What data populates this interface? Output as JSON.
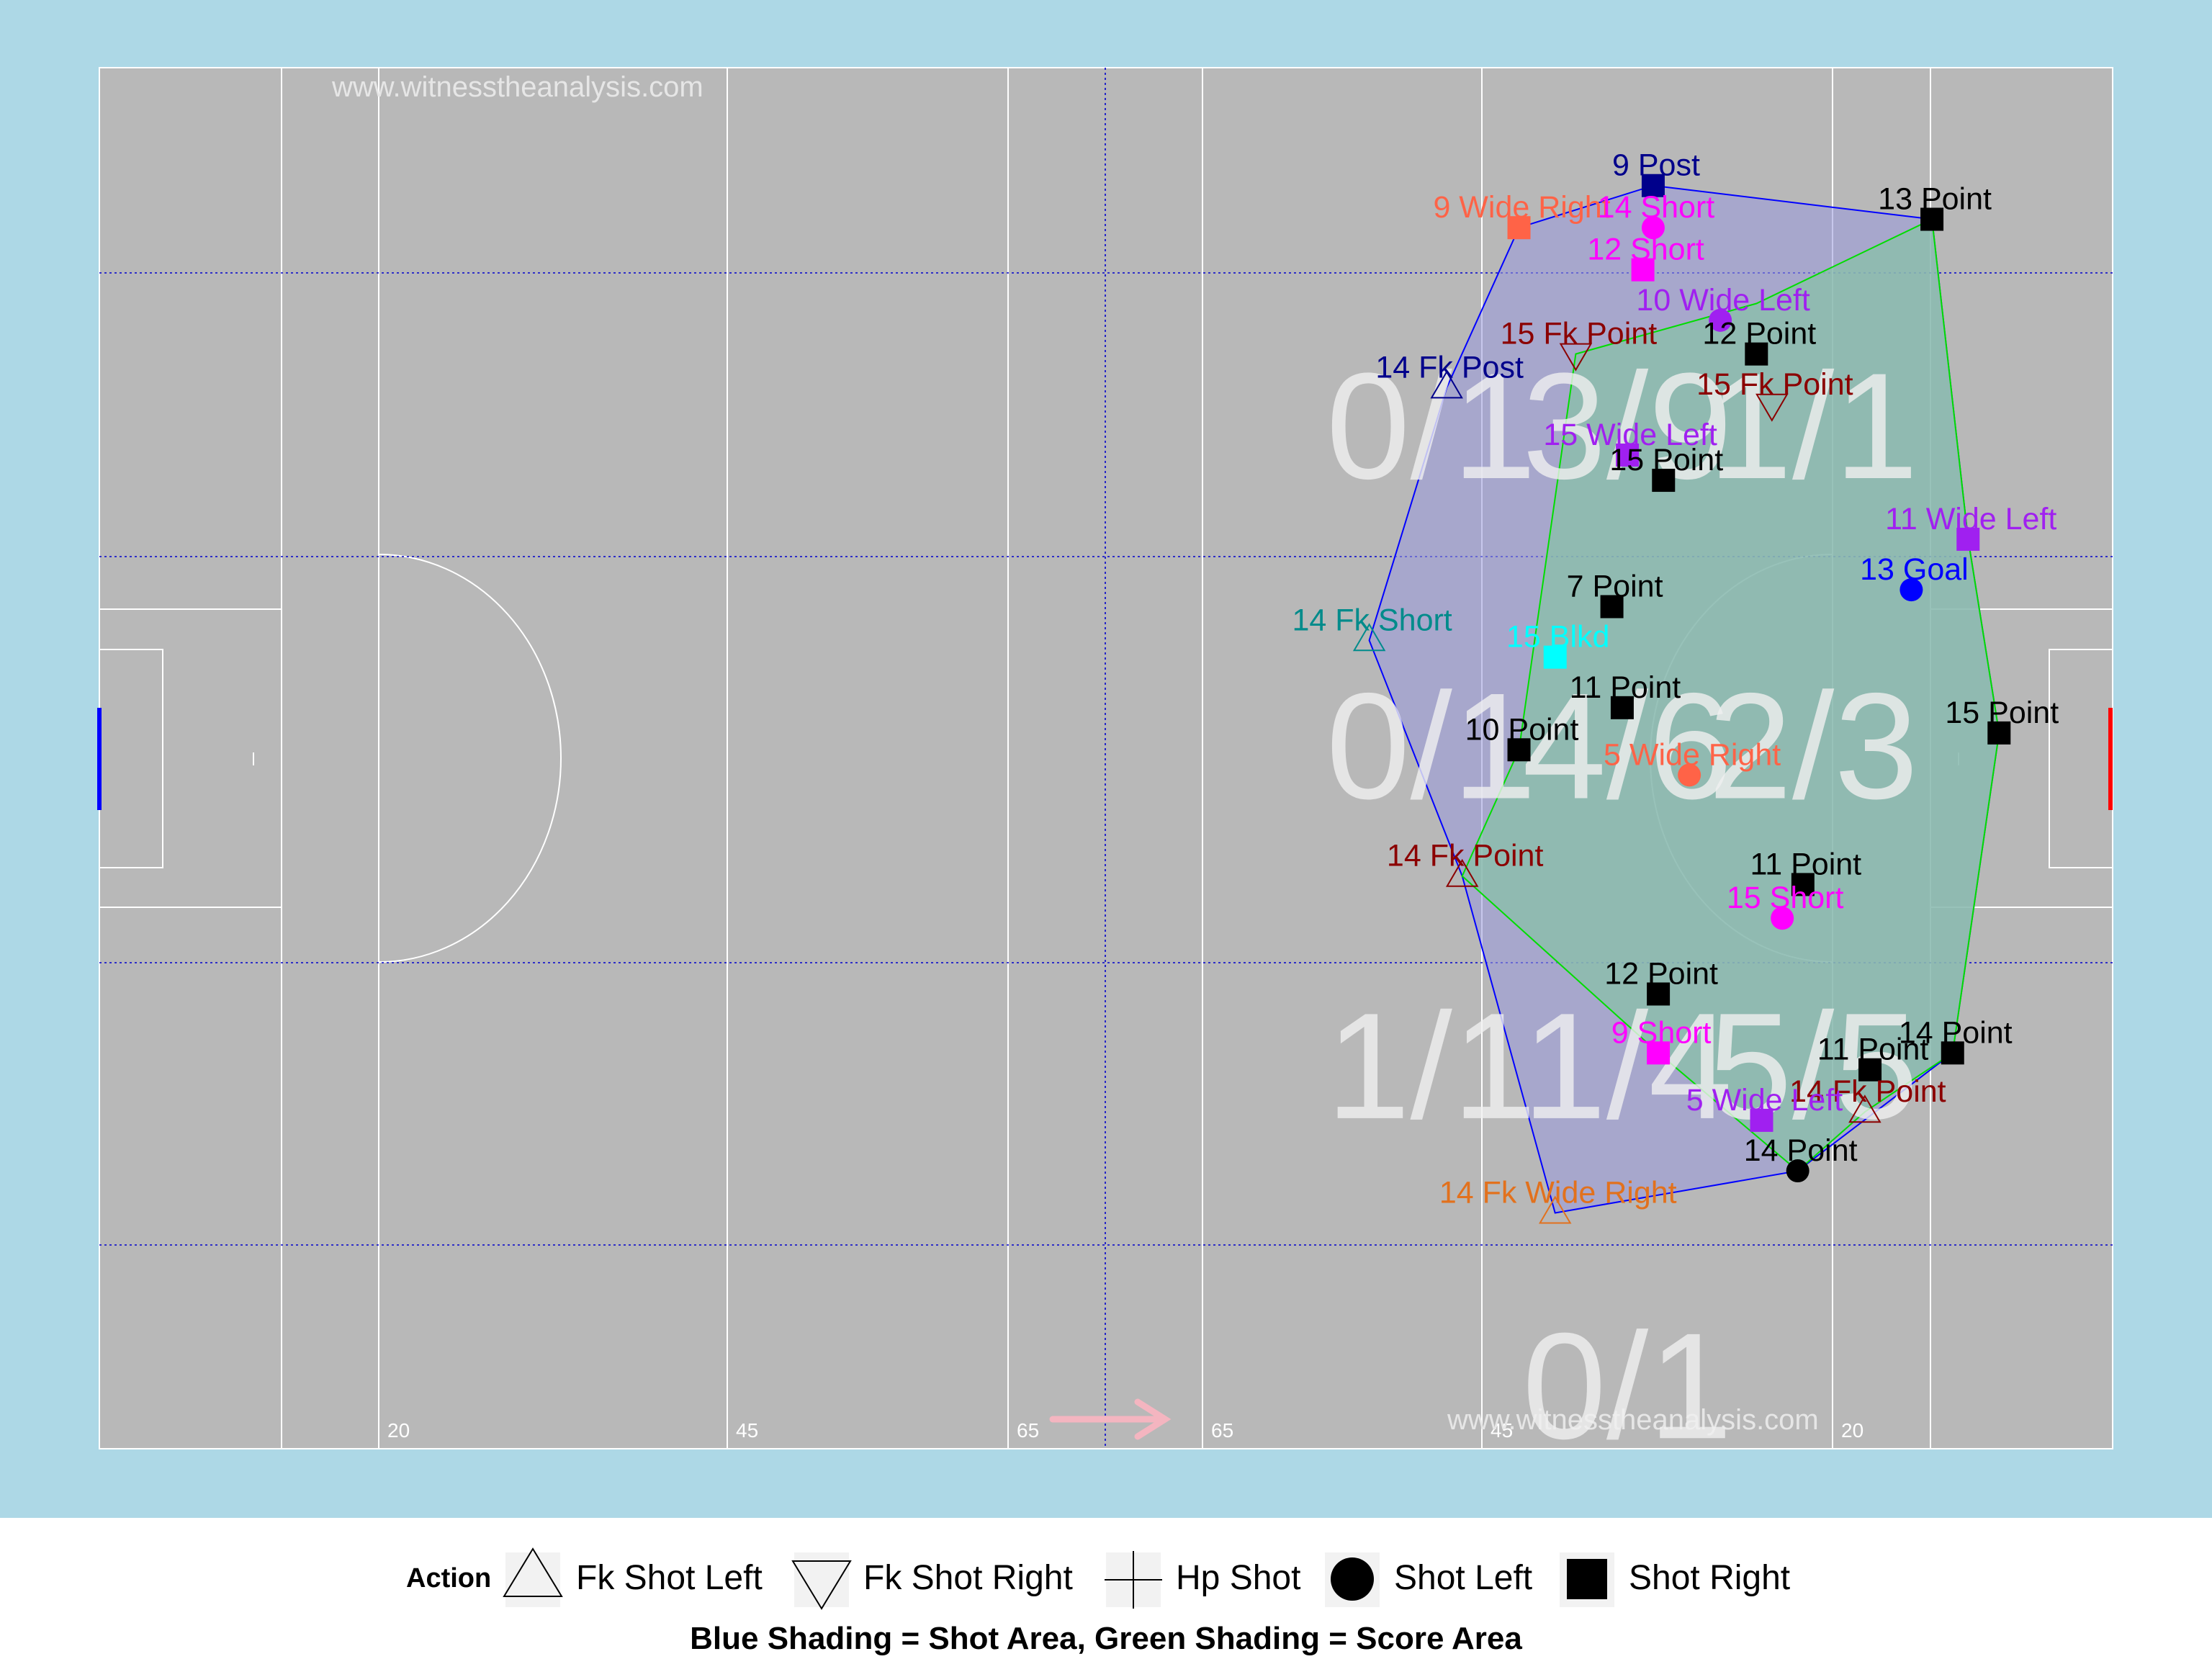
{
  "chart_data": {
    "type": "scatter",
    "title": "",
    "watermark": "www.witnesstheanalysis.com",
    "x_markers": [
      "20",
      "45",
      "65",
      "65",
      "45",
      "20"
    ],
    "legend": {
      "title": "Action",
      "items": [
        {
          "shape": "triangle-up",
          "label": "Fk Shot Left"
        },
        {
          "shape": "triangle-down",
          "label": "Fk Shot Right"
        },
        {
          "shape": "plus",
          "label": "Hp Shot"
        },
        {
          "shape": "circle",
          "label": "Shot Left"
        },
        {
          "shape": "square",
          "label": "Shot Right"
        }
      ]
    },
    "caption": "Blue Shading = Shot Area, Green Shading = Score Area",
    "zones": [
      {
        "text": "0/1",
        "x": 129,
        "y": 60
      },
      {
        "text": "3/9",
        "x": 148,
        "y": 60
      },
      {
        "text": "1/1",
        "x": 166,
        "y": 60
      },
      {
        "text": "0/1",
        "x": 129,
        "y": 41
      },
      {
        "text": "4/6",
        "x": 148,
        "y": 41
      },
      {
        "text": "2/3",
        "x": 166,
        "y": 41
      },
      {
        "text": "1/1",
        "x": 129,
        "y": 22
      },
      {
        "text": "1/4",
        "x": 148,
        "y": 22
      },
      {
        "text": "5/5",
        "x": 166,
        "y": 22
      },
      {
        "text": "0/1",
        "x": 148,
        "y": 3
      }
    ],
    "points": [
      {
        "label": "9 Post",
        "x": 150.5,
        "y": 75,
        "shape": "square",
        "color": "#00008b"
      },
      {
        "label": "9 Wide Right",
        "x": 137.5,
        "y": 72.5,
        "shape": "square",
        "color": "#ff6347"
      },
      {
        "label": "14 Short",
        "x": 150.5,
        "y": 72.5,
        "shape": "circle",
        "color": "#ff00ff"
      },
      {
        "label": "13 Point",
        "x": 177.5,
        "y": 73,
        "shape": "square",
        "color": "#000000"
      },
      {
        "label": "12 Short",
        "x": 149.5,
        "y": 70,
        "shape": "square",
        "color": "#ff00ff"
      },
      {
        "label": "10 Wide Left",
        "x": 157,
        "y": 67,
        "shape": "circle",
        "color": "#a020f0"
      },
      {
        "label": "12 Point",
        "x": 160.5,
        "y": 65,
        "shape": "square",
        "color": "#000000"
      },
      {
        "label": "15 Fk Point",
        "x": 143,
        "y": 65,
        "shape": "triangle-down",
        "color": "#8b0000"
      },
      {
        "label": "14 Fk Post",
        "x": 130.5,
        "y": 63,
        "shape": "triangle-up",
        "color": "#00008b"
      },
      {
        "label": "15 Fk Point",
        "x": 162,
        "y": 62,
        "shape": "triangle-down",
        "color": "#8b0000"
      },
      {
        "label": "15 Wide Left",
        "x": 148,
        "y": 59,
        "shape": "square",
        "color": "#a020f0"
      },
      {
        "label": "15 Point",
        "x": 151.5,
        "y": 57.5,
        "shape": "square",
        "color": "#000000"
      },
      {
        "label": "11 Wide Left",
        "x": 181,
        "y": 54,
        "shape": "square",
        "color": "#a020f0"
      },
      {
        "label": "13 Goal",
        "x": 175.5,
        "y": 51,
        "shape": "circle",
        "color": "#0000ff"
      },
      {
        "label": "7 Point",
        "x": 146.5,
        "y": 50,
        "shape": "square",
        "color": "#000000"
      },
      {
        "label": "14 Fk Short",
        "x": 123,
        "y": 48,
        "shape": "triangle-up",
        "color": "#008b8b"
      },
      {
        "label": "15 Blkd",
        "x": 141,
        "y": 47,
        "shape": "square",
        "color": "#00ffff"
      },
      {
        "label": "11 Point",
        "x": 147.5,
        "y": 44,
        "shape": "square",
        "color": "#000000"
      },
      {
        "label": "15 Point",
        "x": 184,
        "y": 42.5,
        "shape": "square",
        "color": "#000000"
      },
      {
        "label": "10 Point",
        "x": 137.5,
        "y": 41.5,
        "shape": "square",
        "color": "#000000"
      },
      {
        "label": "5 Wide Right",
        "x": 154,
        "y": 40,
        "shape": "circle",
        "color": "#ff6347"
      },
      {
        "label": "11 Point",
        "x": 165,
        "y": 33.5,
        "shape": "square",
        "color": "#000000"
      },
      {
        "label": "14 Fk Point",
        "x": 132,
        "y": 34,
        "shape": "triangle-up",
        "color": "#8b0000"
      },
      {
        "label": "15 Short",
        "x": 163,
        "y": 31.5,
        "shape": "circle",
        "color": "#ff00ff"
      },
      {
        "label": "12 Point",
        "x": 151,
        "y": 27,
        "shape": "square",
        "color": "#000000"
      },
      {
        "label": "14 Point",
        "x": 179.5,
        "y": 23.5,
        "shape": "square",
        "color": "#000000"
      },
      {
        "label": "9 Short",
        "x": 151,
        "y": 23.5,
        "shape": "square",
        "color": "#ff00ff"
      },
      {
        "label": "11 Point",
        "x": 171.5,
        "y": 22.5,
        "shape": "square",
        "color": "#000000"
      },
      {
        "label": "14 Fk Point",
        "x": 171,
        "y": 20,
        "shape": "triangle-up",
        "color": "#8b0000"
      },
      {
        "label": "5 Wide Left",
        "x": 161,
        "y": 19.5,
        "shape": "square",
        "color": "#a020f0"
      },
      {
        "label": "14 Point",
        "x": 164.5,
        "y": 16.5,
        "shape": "circle",
        "color": "#000000"
      },
      {
        "label": "14 Fk Wide Right",
        "x": 141,
        "y": 14,
        "shape": "triangle-up",
        "color": "#e2711d"
      }
    ],
    "shot_area": [
      [
        150.5,
        75
      ],
      [
        177.5,
        73
      ],
      [
        181,
        54
      ],
      [
        184,
        42.5
      ],
      [
        179.5,
        23.5
      ],
      [
        164.5,
        16.5
      ],
      [
        141,
        14
      ],
      [
        132,
        34
      ],
      [
        123,
        48
      ],
      [
        130.5,
        63
      ],
      [
        137.5,
        72.5
      ]
    ],
    "score_area": [
      [
        177.5,
        73
      ],
      [
        181,
        54
      ],
      [
        184,
        42.5
      ],
      [
        179.5,
        23.5
      ],
      [
        171,
        20
      ],
      [
        164.5,
        16.5
      ],
      [
        151,
        23.5
      ],
      [
        132,
        34
      ],
      [
        137.5,
        41.5
      ],
      [
        143,
        65
      ],
      [
        160.5,
        68
      ]
    ],
    "x_range": [
      0,
      195
    ],
    "y_range": [
      0,
      82
    ]
  },
  "colors": {
    "background": "#add8e6",
    "pitch": "#b8b8b8",
    "shot_area": "#9999dd",
    "shot_area_stroke": "#0000ff",
    "score_area": "#88c0a8",
    "score_area_stroke": "#00dd00"
  }
}
